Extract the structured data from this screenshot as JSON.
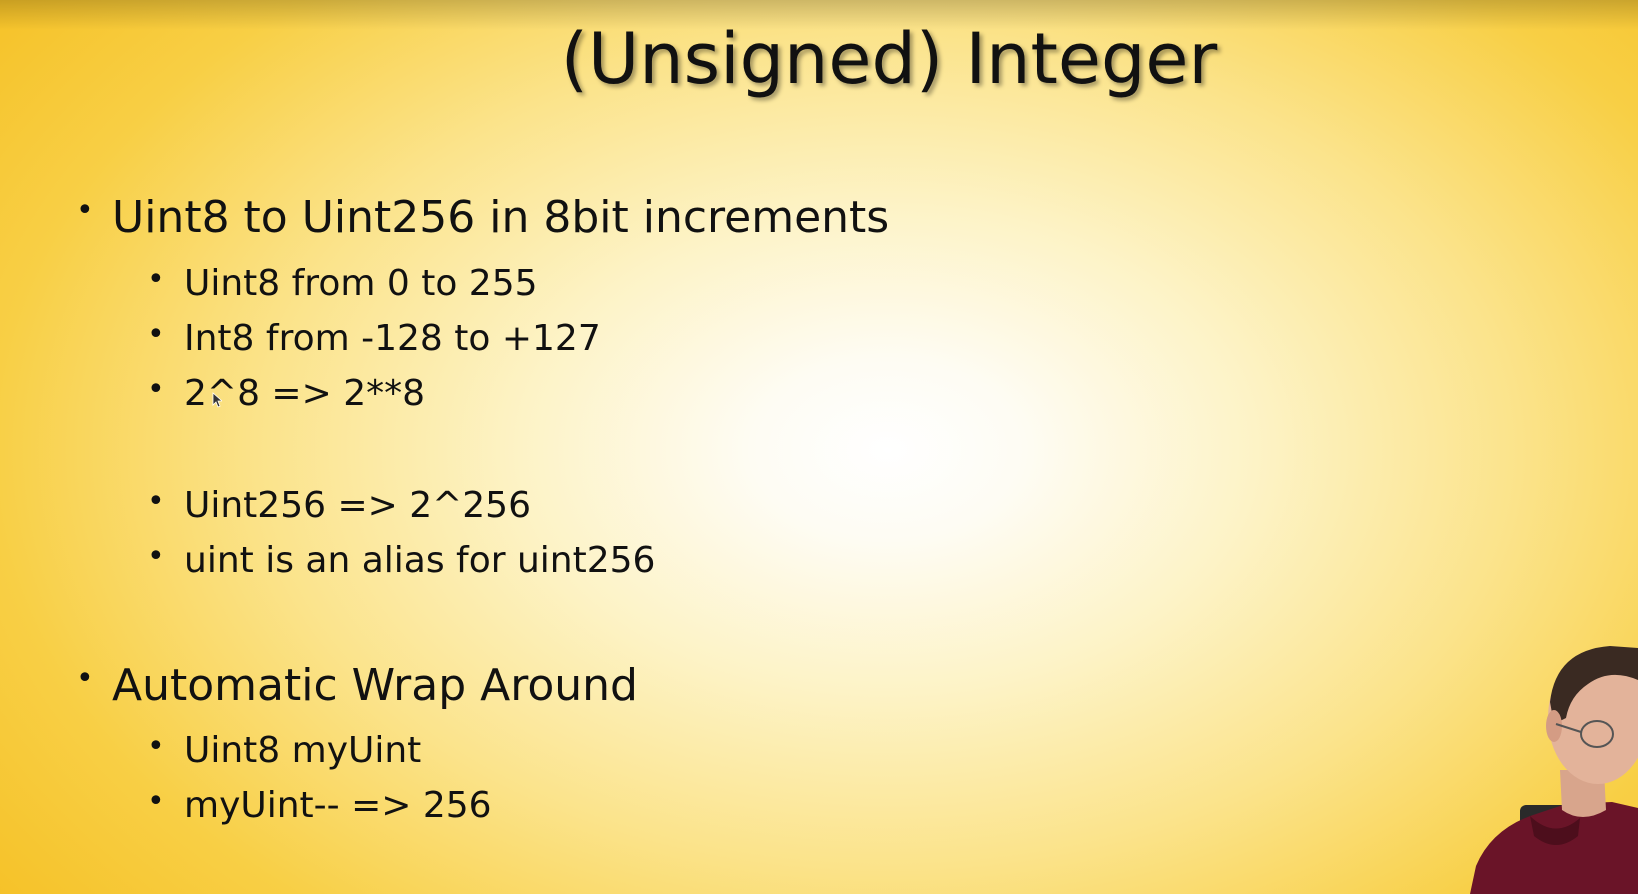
{
  "slide": {
    "title": "(Unsigned) Integer",
    "bullets": {
      "b1": "Uint8 to Uint256 in 8bit increments",
      "b1_1": "Uint8 from 0 to 255",
      "b1_2": "Int8 from -128 to +127",
      "b1_3": "2^8 => 2**8",
      "b1_4": "Uint256 => 2^256",
      "b1_5": "uint is an alias for uint256",
      "b2": "Automatic Wrap Around",
      "b2_1": "Uint8 myUint",
      "b2_2": "myUint-- => 256"
    },
    "bullet_glyph": "•"
  },
  "colors": {
    "background_center": "#ffffff",
    "background_edge": "#f5c024",
    "text": "#111111"
  },
  "icons": {
    "cursor": "mouse-pointer-icon",
    "presenter": "presenter-webcam-thumbnail"
  }
}
